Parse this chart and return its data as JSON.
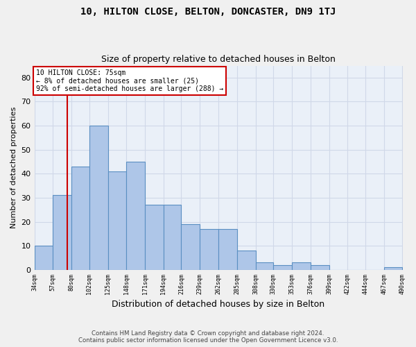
{
  "title1": "10, HILTON CLOSE, BELTON, DONCASTER, DN9 1TJ",
  "title2": "Size of property relative to detached houses in Belton",
  "xlabel": "Distribution of detached houses by size in Belton",
  "ylabel": "Number of detached properties",
  "bar_values": [
    10,
    31,
    43,
    60,
    41,
    45,
    27,
    27,
    19,
    17,
    17,
    8,
    3,
    2,
    3,
    2,
    0,
    0,
    0,
    1
  ],
  "bin_edges": [
    34,
    57,
    80,
    102,
    125,
    148,
    171,
    194,
    216,
    239,
    262,
    285,
    308,
    330,
    353,
    376,
    399,
    422,
    444,
    467,
    490
  ],
  "tick_labels": [
    "34sqm",
    "57sqm",
    "80sqm",
    "102sqm",
    "125sqm",
    "148sqm",
    "171sqm",
    "194sqm",
    "216sqm",
    "239sqm",
    "262sqm",
    "285sqm",
    "308sqm",
    "330sqm",
    "353sqm",
    "376sqm",
    "399sqm",
    "422sqm",
    "444sqm",
    "467sqm",
    "490sqm"
  ],
  "bar_color": "#aec6e8",
  "bar_edge_color": "#5a8fc2",
  "vline_x": 75,
  "vline_color": "#cc0000",
  "annotation_title": "10 HILTON CLOSE: 75sqm",
  "annotation_line1": "← 8% of detached houses are smaller (25)",
  "annotation_line2": "92% of semi-detached houses are larger (288) →",
  "annotation_box_color": "#ffffff",
  "annotation_box_edge": "#cc0000",
  "ylim": [
    0,
    85
  ],
  "yticks": [
    0,
    10,
    20,
    30,
    40,
    50,
    60,
    70,
    80
  ],
  "grid_color": "#d0d8e8",
  "bg_color": "#eaf0f8",
  "fig_bg_color": "#f0f0f0",
  "footer1": "Contains HM Land Registry data © Crown copyright and database right 2024.",
  "footer2": "Contains public sector information licensed under the Open Government Licence v3.0."
}
